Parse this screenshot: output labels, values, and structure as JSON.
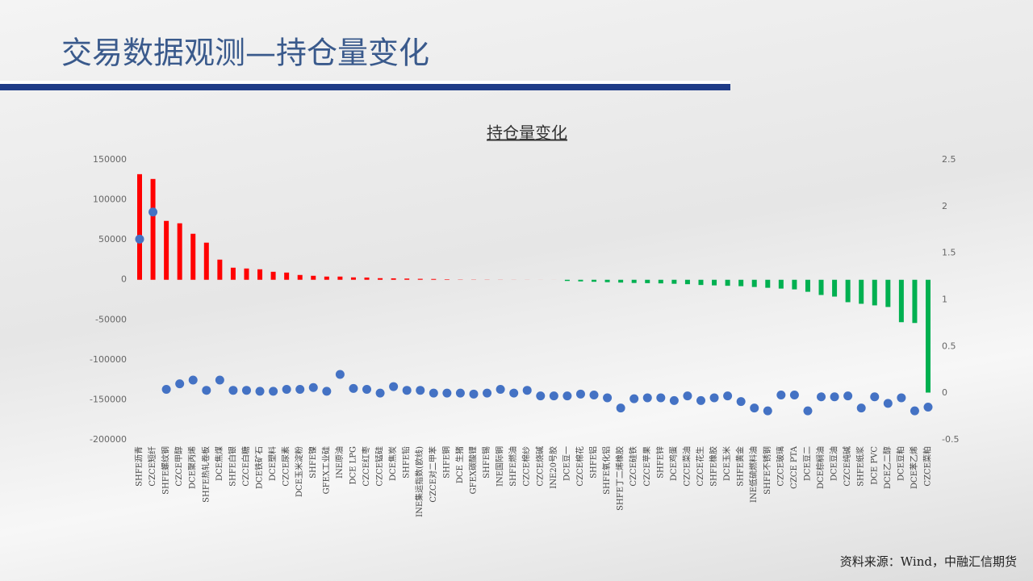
{
  "title": "交易数据观测—持仓量变化",
  "footer": "资料来源：Wind，中融汇信期货",
  "chart_data": {
    "type": "bar",
    "title": "持仓量变化",
    "categories": [
      "SHFE沥青",
      "CZCE短纤",
      "SHFE螺纹钢",
      "CZCE甲醇",
      "DCE聚丙烯",
      "SHFE热轧卷板",
      "DCE焦煤",
      "SHFE白银",
      "CZCE白糖",
      "DCE铁矿石",
      "DCE塑料",
      "CZCE尿素",
      "DCE玉米淀粉",
      "SHFE镍",
      "GFEX工业硅",
      "INE原油",
      "DCE LPG",
      "CZCE红枣",
      "CZCE锰硅",
      "DCE焦炭",
      "SHFE铅",
      "INE集运指数(欧线)",
      "CZCE对二甲苯",
      "SHFE铜",
      "DCE 生猪",
      "GFEX碳酸锂",
      "SHFE锡",
      "INE国际铜",
      "SHFE燃油",
      "CZCE棉纱",
      "CZCE烧碱",
      "INE20号胶",
      "DCE豆一",
      "CZCE棉花",
      "SHFE铝",
      "SHFE氧化铝",
      "SHFE丁二烯橡胶",
      "CZCE硅铁",
      "CZCE苹果",
      "SHFE锌",
      "DCE鸡蛋",
      "CZCE菜油",
      "CZCE花生",
      "SHFE橡胶",
      "DCE玉米",
      "SHFE黄金",
      "INE低硫燃料油",
      "SHFE不锈钢",
      "CZCE玻璃",
      "CZCE PTA",
      "DCE豆二",
      "DCE棕榈油",
      "DCE豆油",
      "CZCE纯碱",
      "SHFE纸浆",
      "DCE PVC",
      "DCE乙二醇",
      "DCE豆粕",
      "DCE苯乙烯",
      "CZCE菜粕"
    ],
    "series": [
      {
        "positive_color": "#ff0000",
        "negative_color": "#00b050",
        "values": [
          132000,
          126000,
          73600,
          70600,
          57500,
          46400,
          25200,
          15100,
          14100,
          13100,
          10000,
          9000,
          6000,
          5000,
          4000,
          4000,
          3000,
          2800,
          2000,
          1800,
          1500,
          1200,
          1000,
          600,
          300,
          250,
          200,
          150,
          100,
          80,
          50,
          30,
          -1500,
          -2000,
          -2500,
          -3000,
          -3500,
          -4000,
          -4200,
          -4500,
          -5000,
          -5500,
          -6500,
          -7000,
          -7500,
          -8000,
          -9000,
          -10000,
          -11000,
          -12000,
          -15000,
          -19000,
          -21000,
          -28000,
          -30000,
          -32000,
          -34000,
          -53000,
          -54000,
          -141000
        ]
      },
      {
        "type": "scatter",
        "axis": "y2",
        "color": "#4472c4",
        "values": [
          1.65,
          1.94,
          0.04,
          0.1,
          0.14,
          0.03,
          0.14,
          0.03,
          0.03,
          0.02,
          0.02,
          0.04,
          0.04,
          0.06,
          0.02,
          0.2,
          0.05,
          0.04,
          0,
          0.07,
          0.03,
          0.03,
          0,
          0,
          0,
          -0.01,
          0,
          0.04,
          0,
          0.03,
          -0.03,
          -0.03,
          -0.03,
          -0.01,
          -0.02,
          -0.05,
          -0.16,
          -0.06,
          -0.05,
          -0.05,
          -0.08,
          -0.03,
          -0.08,
          -0.05,
          -0.03,
          -0.09,
          -0.16,
          -0.19,
          -0.02,
          -0.02,
          -0.19,
          -0.04,
          -0.04,
          -0.03,
          -0.16,
          -0.04,
          -0.11,
          -0.05,
          -0.19,
          -0.15
        ]
      }
    ],
    "ylim": [
      -200000,
      150000
    ],
    "yticks": [
      150000,
      100000,
      50000,
      0,
      -50000,
      -100000,
      -150000,
      -200000
    ],
    "y2lim": [
      -0.5,
      2.5
    ],
    "y2ticks": [
      2.5,
      2,
      1.5,
      1,
      0.5,
      0,
      -0.5
    ]
  }
}
